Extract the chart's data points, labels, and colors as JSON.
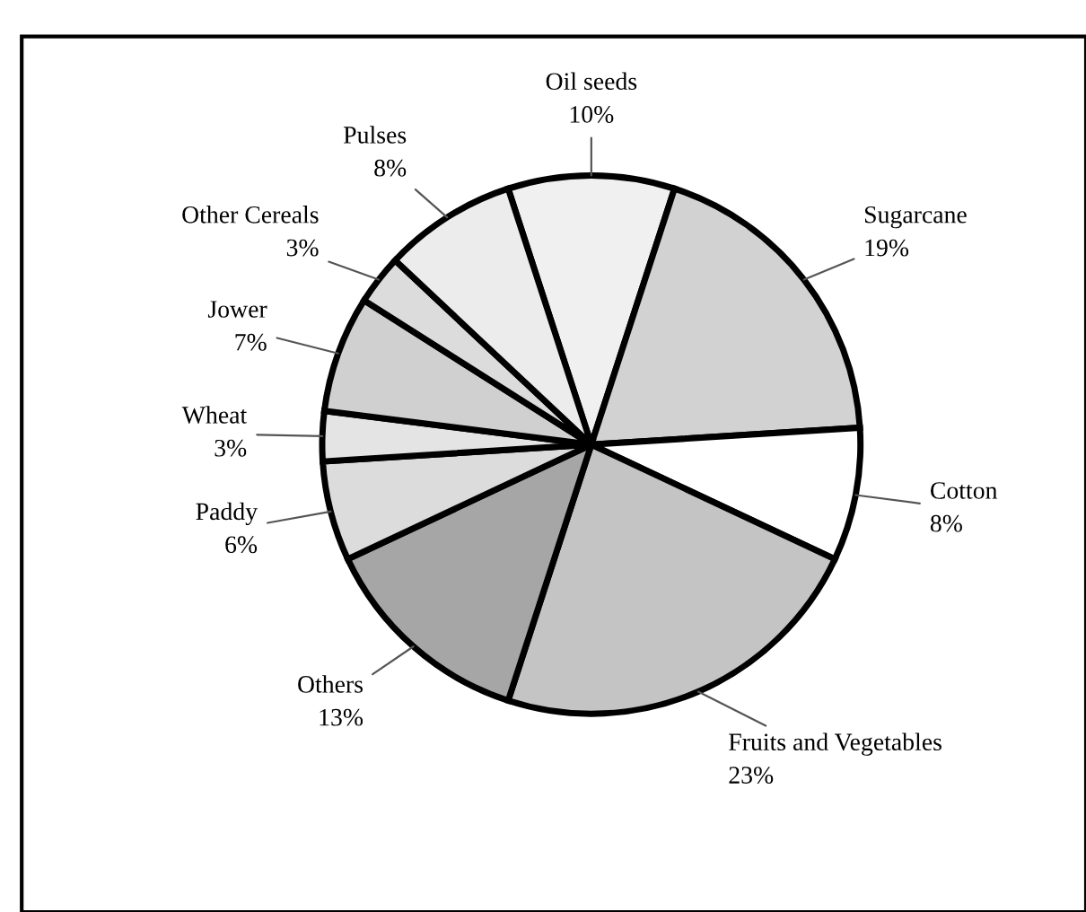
{
  "chart_data": {
    "type": "pie",
    "categories": [
      "Oil seeds",
      "Sugarcane",
      "Cotton",
      "Fruits and Vegetables",
      "Others",
      "Paddy",
      "Wheat",
      "Jower",
      "Other Cereals",
      "Pulses"
    ],
    "values": [
      10,
      19,
      8,
      23,
      13,
      6,
      3,
      7,
      3,
      8
    ],
    "value_labels": [
      "10%",
      "19%",
      "8%",
      "23%",
      "13%",
      "6%",
      "3%",
      "7%",
      "3%",
      "8%"
    ],
    "colors": [
      "#f0f0f0",
      "#d2d2d2",
      "#ffffff",
      "#c4c4c4",
      "#a6a6a6",
      "#dcdcdc",
      "#e4e4e4",
      "#d0d0d0",
      "#dcdcdc",
      "#ececec"
    ],
    "legend": false
  }
}
